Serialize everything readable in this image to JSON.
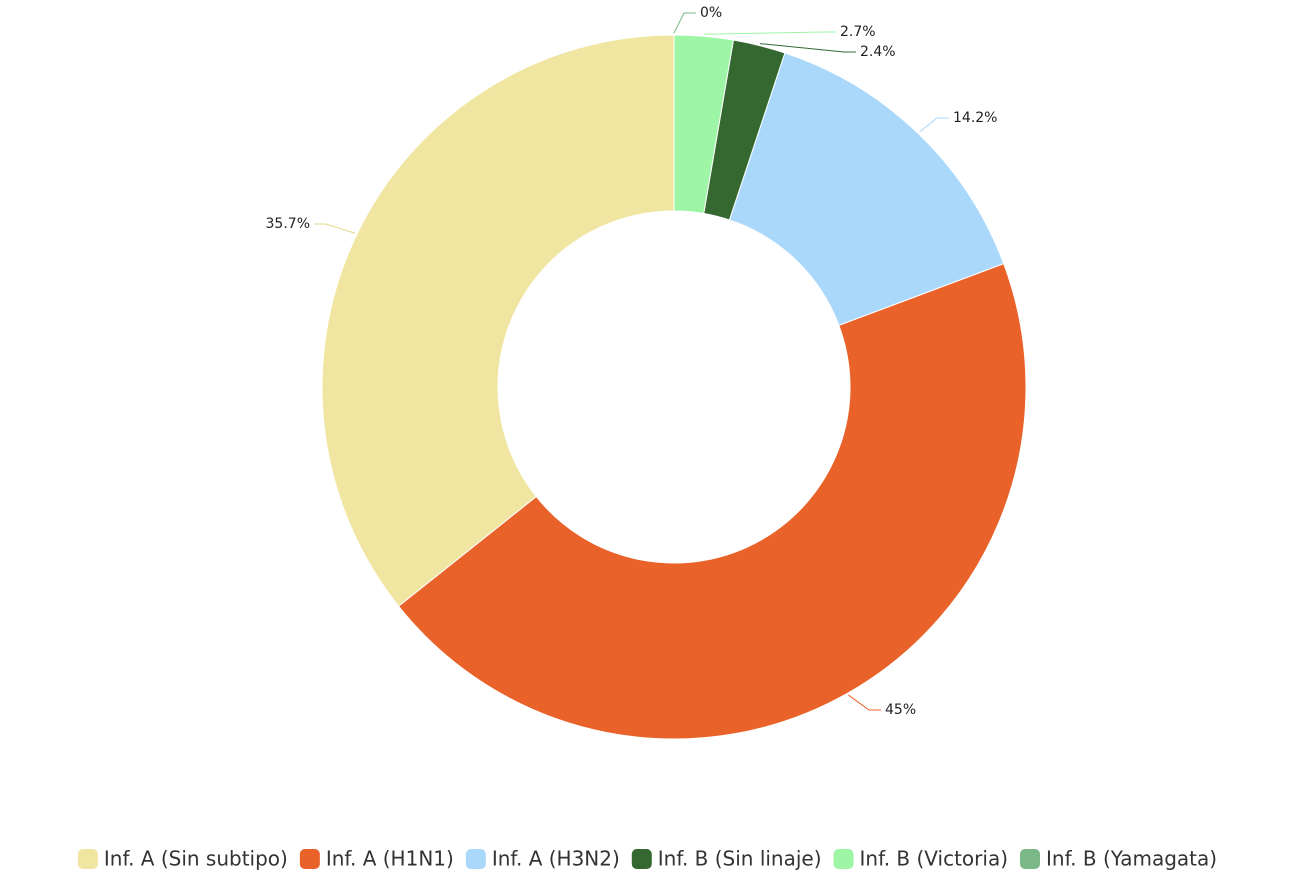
{
  "chart_data": {
    "type": "donut",
    "categories": [
      "Inf. A (Sin subtipo)",
      "Inf. A (H1N1)",
      "Inf. A (H3N2)",
      "Inf. B (Sin linaje)",
      "Inf. B (Victoria)",
      "Inf. B (Yamagata)"
    ],
    "values": [
      35.7,
      45,
      14.2,
      2.4,
      2.7,
      0
    ],
    "value_labels": [
      "35.7%",
      "45%",
      "14.2%",
      "2.4%",
      "2.7%",
      "0%"
    ],
    "colors": [
      "#f0e6a2",
      "#e8622a",
      "#a9d8fb",
      "#356831",
      "#9ef5a6",
      "#7ab887"
    ]
  }
}
